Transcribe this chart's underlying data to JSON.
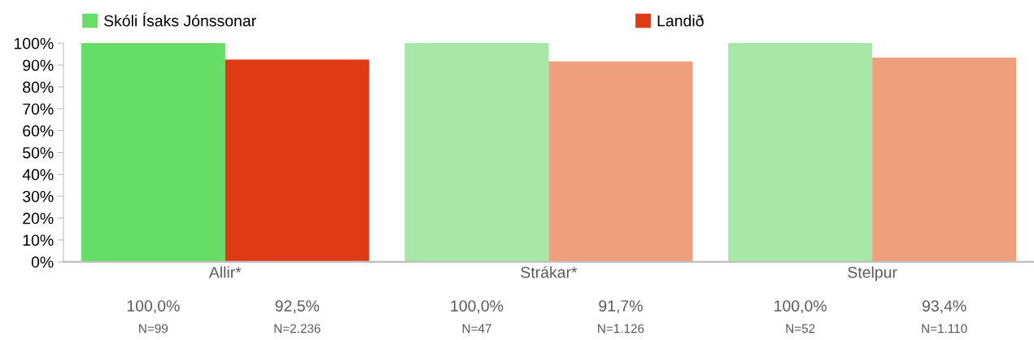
{
  "chart_data": {
    "type": "bar",
    "categories": [
      "Allir*",
      "Strákar*",
      "Stelpur"
    ],
    "series": [
      {
        "name": "Skóli Ísaks Jónssonar",
        "color": "#66dd66",
        "colors": [
          "#66dd66",
          "#a5e8a5",
          "#a5e8a5"
        ],
        "values": [
          100,
          100,
          100
        ],
        "value_labels": [
          "100,0%",
          "100,0%",
          "100,0%"
        ]
      },
      {
        "name": "Landið",
        "color": "#e03a14",
        "colors": [
          "#e03a14",
          "#eea07c",
          "#eea07c"
        ],
        "values": [
          92.5,
          91.7,
          93.4
        ],
        "value_labels": [
          "92,5%",
          "91,7%",
          "93,4%"
        ]
      }
    ],
    "ylim": [
      0,
      100
    ],
    "yticks": [
      {
        "value": 0,
        "label": "0%"
      },
      {
        "value": 10,
        "label": "10%"
      },
      {
        "value": 20,
        "label": "20%"
      },
      {
        "value": 30,
        "label": "30%"
      },
      {
        "value": 40,
        "label": "40%"
      },
      {
        "value": 50,
        "label": "50%"
      },
      {
        "value": 60,
        "label": "60%"
      },
      {
        "value": 70,
        "label": "70%"
      },
      {
        "value": 80,
        "label": "80%"
      },
      {
        "value": 90,
        "label": "90%"
      },
      {
        "value": 100,
        "label": "100%"
      }
    ],
    "annotations": [
      "N=99",
      "N=2.236",
      "N=47",
      "N=1.126",
      "N=52",
      "N=1.110"
    ],
    "legend": "top",
    "grid": false
  }
}
